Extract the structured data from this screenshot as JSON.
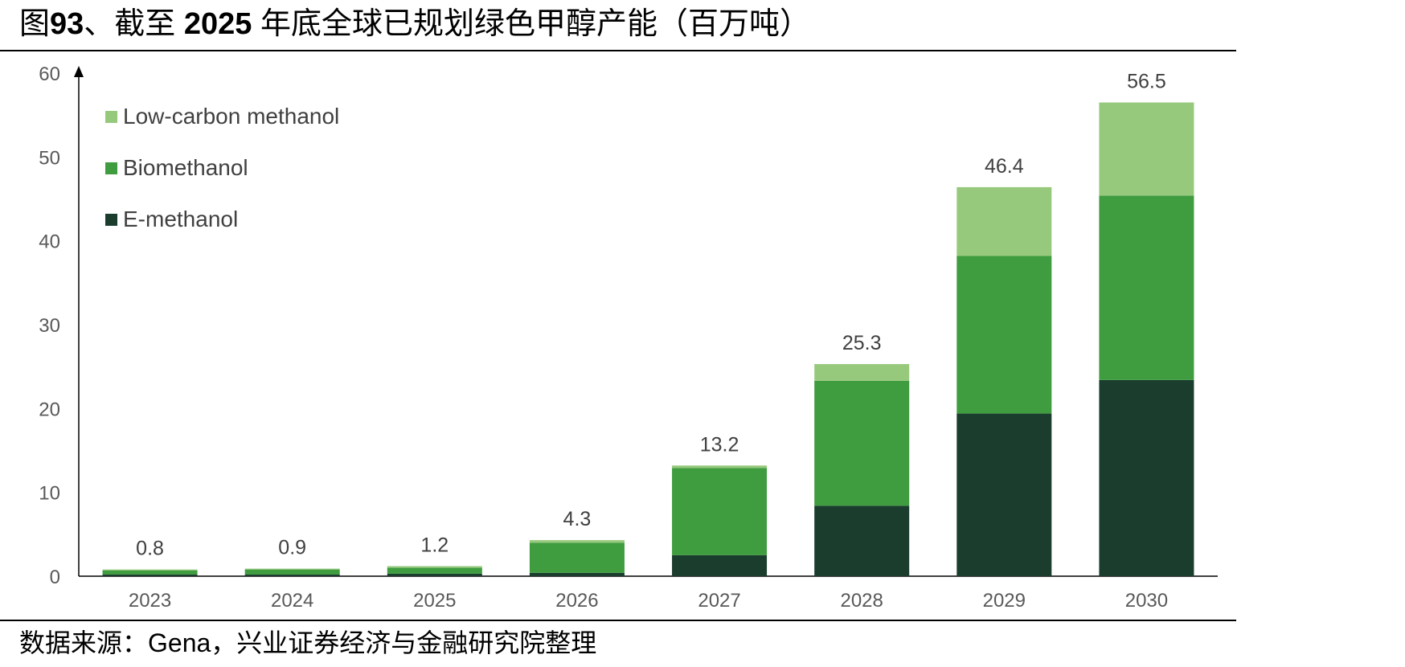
{
  "header": {
    "title_prefix": "图",
    "title_number": "93",
    "title_mid": "、截至 ",
    "title_year": "2025",
    "title_rest": " 年底全球已规划绿色甲醇产能（百万吨）"
  },
  "footer": {
    "source": "数据来源：Gena，兴业证券经济与金融研究院整理"
  },
  "chart_data": {
    "type": "bar",
    "stacked": true,
    "categories": [
      "2023",
      "2024",
      "2025",
      "2026",
      "2027",
      "2028",
      "2029",
      "2030"
    ],
    "series": [
      {
        "name": "E-methanol",
        "color": "#1a3d2e",
        "values": [
          0.2,
          0.2,
          0.3,
          0.4,
          2.5,
          8.4,
          19.4,
          23.4
        ]
      },
      {
        "name": "Biomethanol",
        "color": "#3f9c3f",
        "values": [
          0.5,
          0.6,
          0.7,
          3.6,
          10.4,
          14.9,
          18.8,
          22.0
        ]
      },
      {
        "name": "Low-carbon methanol",
        "color": "#97c97c",
        "values": [
          0.1,
          0.1,
          0.2,
          0.3,
          0.3,
          2.0,
          8.2,
          11.1
        ]
      }
    ],
    "totals": [
      "0.8",
      "0.9",
      "1.2",
      "4.3",
      "13.2",
      "25.3",
      "46.4",
      "56.5"
    ],
    "ylim": [
      0,
      60
    ],
    "yticks": [
      "0",
      "10",
      "20",
      "30",
      "40",
      "50",
      "60"
    ],
    "legend_placement": "top-left",
    "legend_order": [
      "Low-carbon methanol",
      "Biomethanol",
      "E-methanol"
    ],
    "grid": false
  }
}
